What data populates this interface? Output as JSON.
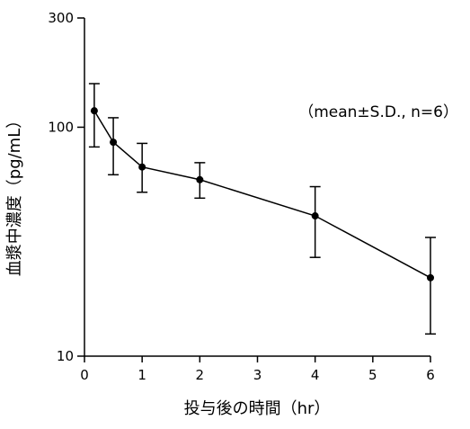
{
  "chart_data": {
    "type": "line",
    "xlabel": "投与後の時間（hr）",
    "ylabel": "血漿中濃度（pg/mL）",
    "annotation": "（mean±S.D., n=6）",
    "x_ticks": [
      "0",
      "1",
      "2",
      "3",
      "4",
      "5",
      "6"
    ],
    "y_ticks": [
      "10",
      "100",
      "300"
    ],
    "y_tick_values": [
      10,
      100,
      300
    ],
    "xlim": [
      0,
      6
    ],
    "ylim": [
      10,
      300
    ],
    "y_scale": "log",
    "grid": false,
    "line_color": "#000000",
    "series": [
      {
        "x": [
          0.17,
          0.5,
          1,
          2,
          4,
          6
        ],
        "y": [
          118,
          86,
          67,
          59,
          41,
          22
        ],
        "y_upper": [
          155,
          110,
          85,
          70,
          55,
          33
        ],
        "y_lower": [
          82,
          62,
          52,
          49,
          27,
          12.5
        ]
      }
    ]
  }
}
